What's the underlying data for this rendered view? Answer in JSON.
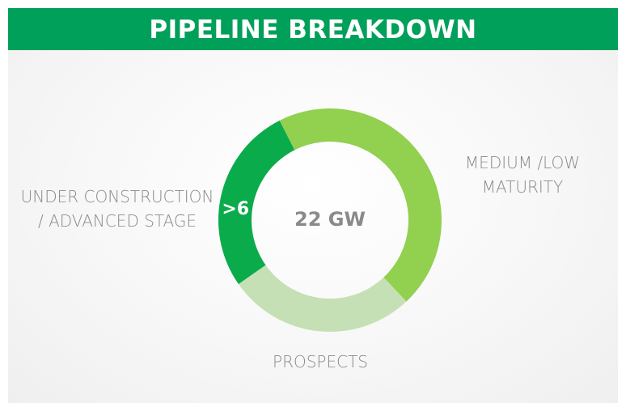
{
  "chart_data": {
    "type": "donut",
    "title": "PIPELINE BREAKDOWN",
    "center_label": "22 GW",
    "categories": [
      "UNDER CONSTRUCTION / ADVANCED STAGE",
      "MEDIUM /LOW MATURITY",
      "PROSPECTS"
    ],
    "values": [
      6,
      10,
      6
    ],
    "value_labels": [
      ">6",
      null,
      null
    ],
    "colors": [
      "#0aab4b",
      "#92d050",
      "#c5e0b4"
    ]
  }
}
